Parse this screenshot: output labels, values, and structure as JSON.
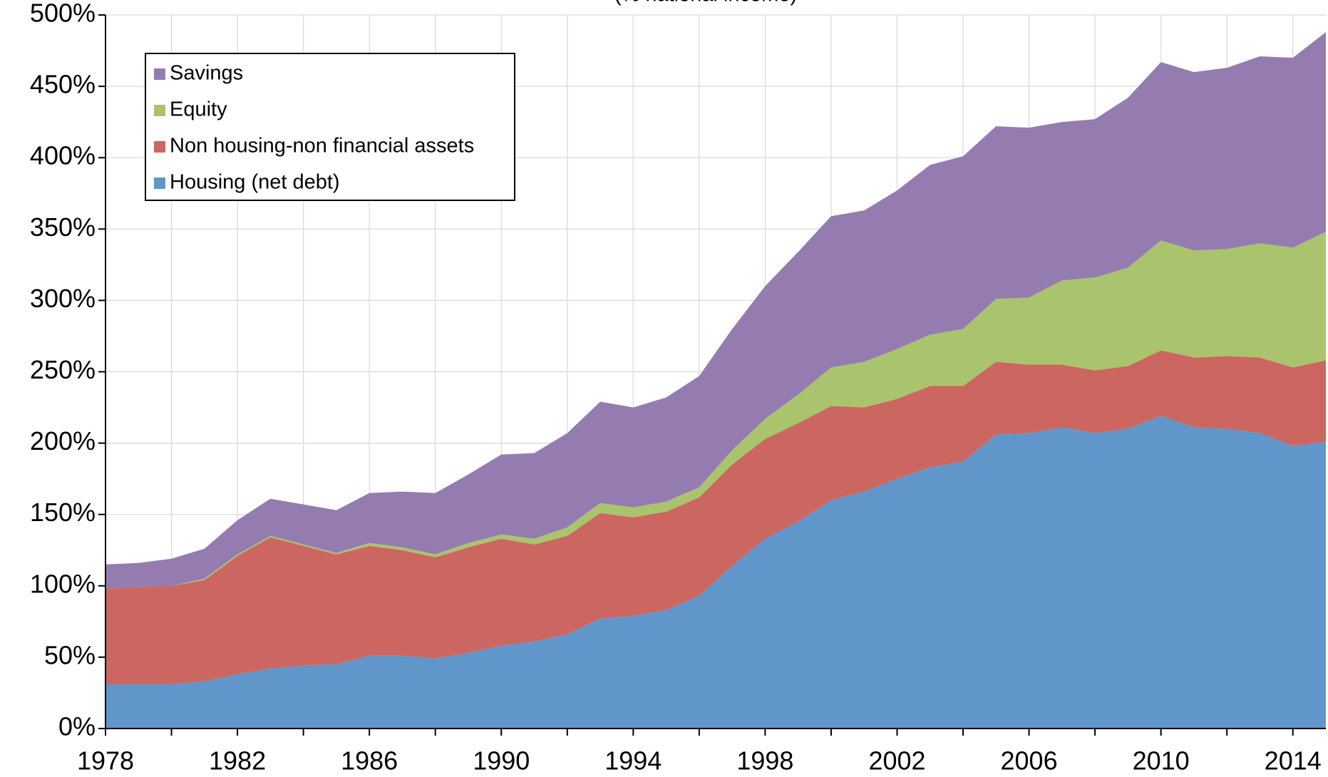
{
  "chart_data": {
    "type": "stacked_area",
    "subtitle": "(% national income)",
    "x": [
      1978,
      1979,
      1980,
      1981,
      1982,
      1983,
      1984,
      1985,
      1986,
      1987,
      1988,
      1989,
      1990,
      1991,
      1992,
      1993,
      1994,
      1995,
      1996,
      1997,
      1998,
      1999,
      2000,
      2001,
      2002,
      2003,
      2004,
      2005,
      2006,
      2007,
      2008,
      2009,
      2010,
      2011,
      2012,
      2013,
      2014,
      2015
    ],
    "series": [
      {
        "name": "Housing (net debt)",
        "color": "#6096c9",
        "values": [
          31,
          31,
          31,
          33,
          38,
          42,
          44,
          45,
          51,
          51,
          49,
          53,
          58,
          61,
          66,
          77,
          79,
          83,
          93,
          114,
          133,
          145,
          160,
          166,
          175,
          183,
          187,
          206,
          207,
          211,
          207,
          210,
          219,
          211,
          210,
          207,
          198,
          201
        ]
      },
      {
        "name": "Non housing-non financial assets",
        "color": "#cc6660",
        "values": [
          67,
          68,
          69,
          71,
          83,
          92,
          84,
          77,
          77,
          74,
          71,
          74,
          75,
          68,
          69,
          74,
          69,
          69,
          69,
          71,
          70,
          69,
          66,
          59,
          56,
          57,
          53,
          51,
          48,
          44,
          44,
          44,
          46,
          49,
          51,
          53,
          55,
          57
        ]
      },
      {
        "name": "Equity",
        "color": "#a9c46c",
        "values": [
          0,
          0,
          0,
          1,
          1,
          1,
          1,
          1,
          2,
          2,
          2,
          3,
          3,
          4,
          6,
          7,
          7,
          7,
          7,
          10,
          14,
          20,
          27,
          32,
          35,
          36,
          40,
          44,
          47,
          59,
          65,
          69,
          77,
          75,
          75,
          80,
          84,
          90
        ]
      },
      {
        "name": "Savings",
        "color": "#947cb0",
        "values": [
          17,
          17,
          19,
          21,
          24,
          26,
          28,
          30,
          35,
          39,
          43,
          48,
          56,
          60,
          66,
          71,
          70,
          73,
          78,
          85,
          93,
          100,
          106,
          106,
          111,
          119,
          121,
          121,
          119,
          111,
          111,
          119,
          125,
          125,
          127,
          131,
          133,
          140
        ]
      }
    ],
    "xlim": [
      1978,
      2015
    ],
    "xticks": [
      1978,
      1982,
      1986,
      1990,
      1994,
      1998,
      2002,
      2006,
      2010,
      2014
    ],
    "ylim": [
      0,
      500
    ],
    "yticks": [
      {
        "value": 0,
        "label": "0%"
      },
      {
        "value": 50,
        "label": "50%"
      },
      {
        "value": 100,
        "label": "100%"
      },
      {
        "value": 150,
        "label": "150%"
      },
      {
        "value": 200,
        "label": "200%"
      },
      {
        "value": 250,
        "label": "250%"
      },
      {
        "value": 300,
        "label": "300%"
      },
      {
        "value": 350,
        "label": "350%"
      },
      {
        "value": 400,
        "label": "400%"
      },
      {
        "value": 450,
        "label": "450%"
      },
      {
        "value": 500,
        "label": "500%"
      }
    ],
    "grid": true,
    "legend": "upper left"
  }
}
